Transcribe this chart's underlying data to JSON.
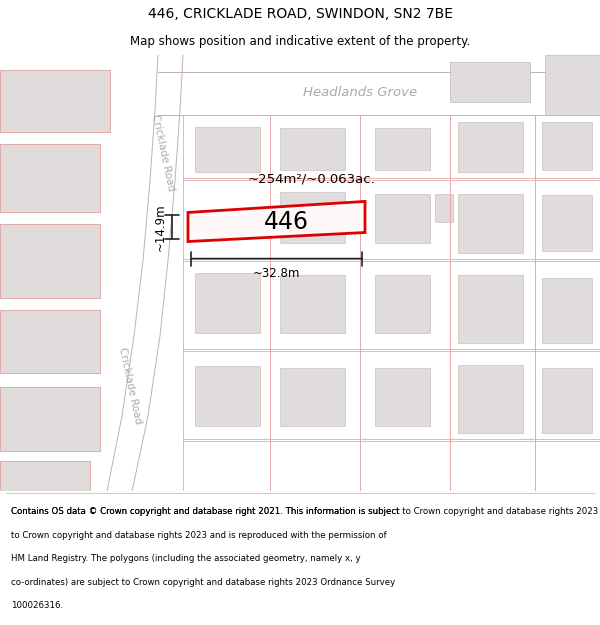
{
  "title_line1": "446, CRICKLADE ROAD, SWINDON, SN2 7BE",
  "title_line2": "Map shows position and indicative extent of the property.",
  "footer_text": "Contains OS data © Crown copyright and database right 2021. This information is subject to Crown copyright and database rights 2023 and is reproduced with the permission of HM Land Registry. The polygons (including the associated geometry, namely x, y co-ordinates) are subject to Crown copyright and database rights 2023 Ordnance Survey 100026316.",
  "map_bg": "#ffffff",
  "road_fill": "#f5f0f0",
  "road_edge": "#c8b8b8",
  "bld_fill_gray": "#e0dcdc",
  "bld_edge_gray": "#c0b8b8",
  "bld_fill_pink": "#f5eeee",
  "bld_edge_pink": "#e8c8c8",
  "prop_fill": "#fff8f8",
  "prop_edge": "#dd0000",
  "street_color": "#b8b0b0",
  "dim_color": "#222222",
  "area_label": "~254m²/~0.063ac.",
  "property_label": "446",
  "dim_width": "~32.8m",
  "dim_height": "~14.9m",
  "headlands_grove": "Headlands Grove",
  "cricklade_road": "Cricklade Road"
}
